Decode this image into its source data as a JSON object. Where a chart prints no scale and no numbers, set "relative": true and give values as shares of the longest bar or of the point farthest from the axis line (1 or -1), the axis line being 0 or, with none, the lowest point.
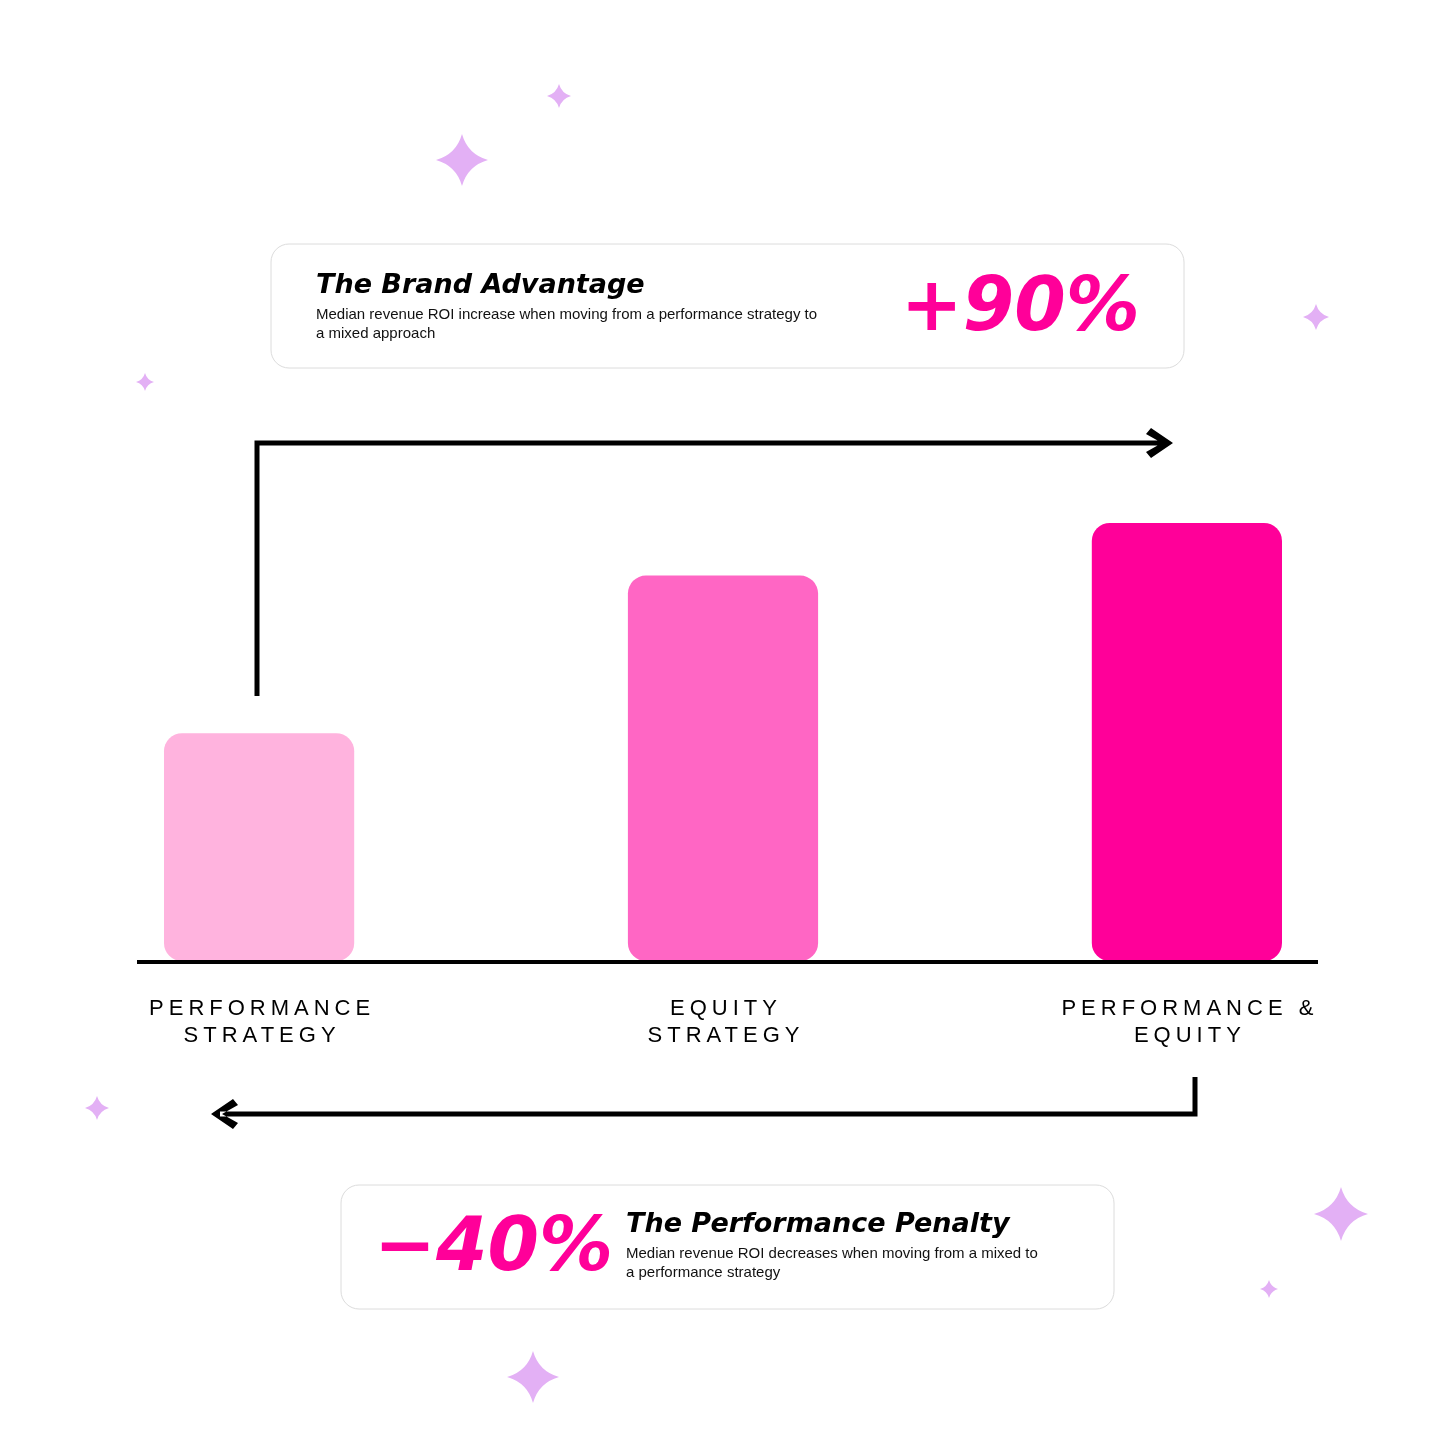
{
  "chart_data": {
    "type": "bar",
    "relative": true,
    "categories": [
      "PERFORMANCE STRATEGY",
      "EQUITY STRATEGY",
      "PERFORMANCE & EQUITY"
    ],
    "values": [
      0.52,
      0.88,
      1
    ],
    "colors": [
      "#ffb3de",
      "#ff66c4",
      "#ff0099"
    ],
    "annotations": [
      "The Brand Advantage",
      "Median revenue ROI increase when moving from a performance strategy to a mixed approach",
      "+90%",
      "−40%",
      "The Performance Penalty",
      "Median revenue ROI decreases when moving from a mixed to a performance strategy"
    ]
  }
}
